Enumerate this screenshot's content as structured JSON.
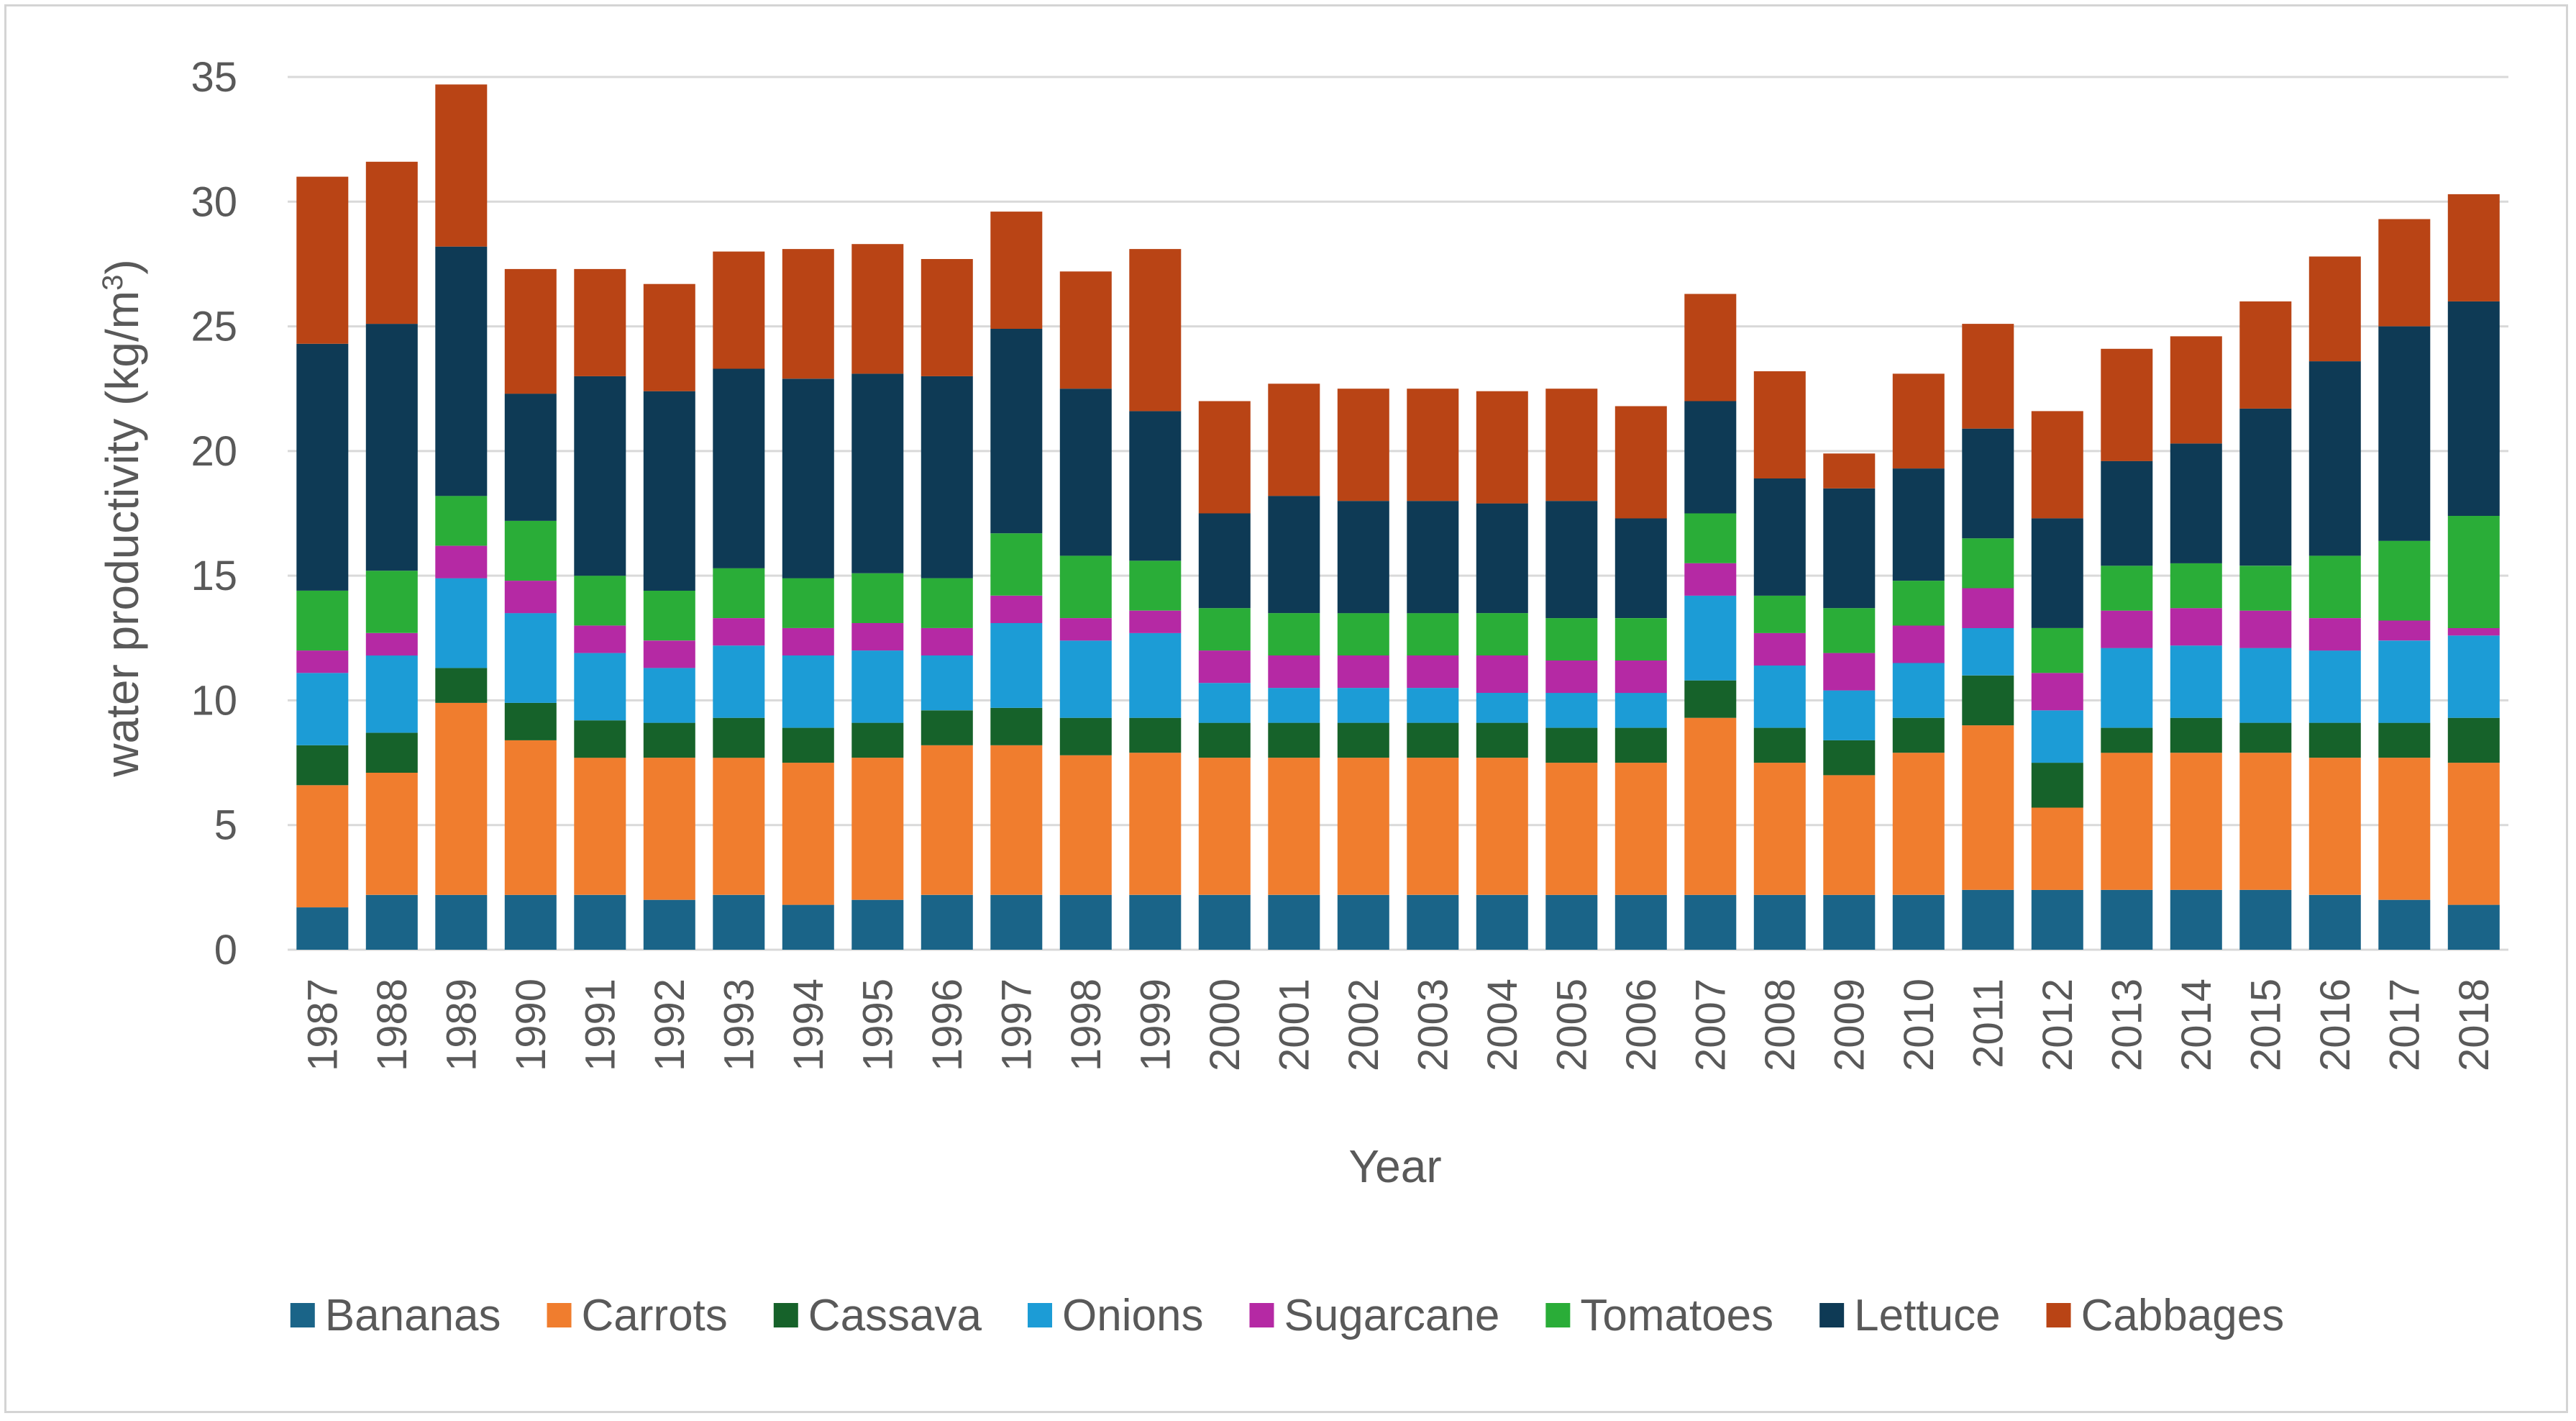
{
  "chart_data": {
    "type": "bar",
    "stacked": true,
    "title": "",
    "xlabel": "Year",
    "ylabel": "water productivity  (kg/m",
    "ylabel_superscript": "3",
    "ylabel_close": ")",
    "ylim": [
      0,
      35
    ],
    "yticks": [
      "0",
      "5",
      "10",
      "15",
      "20",
      "25",
      "30",
      "35"
    ],
    "grid": true,
    "legend_position": "bottom",
    "categories": [
      "1987",
      "1988",
      "1989",
      "1990",
      "1991",
      "1992",
      "1993",
      "1994",
      "1995",
      "1996",
      "1997",
      "1998",
      "1999",
      "2000",
      "2001",
      "2002",
      "2003",
      "2004",
      "2005",
      "2006",
      "2007",
      "2008",
      "2009",
      "2010",
      "2011",
      "2012",
      "2013",
      "2014",
      "2015",
      "2016",
      "2017",
      "2018"
    ],
    "series": [
      {
        "name": "Bananas",
        "color": "#1a6488",
        "values": [
          1.7,
          2.2,
          2.2,
          2.2,
          2.2,
          2.0,
          2.2,
          1.8,
          2.0,
          2.2,
          2.2,
          2.2,
          2.2,
          2.2,
          2.2,
          2.2,
          2.2,
          2.2,
          2.2,
          2.2,
          2.2,
          2.2,
          2.2,
          2.2,
          2.4,
          2.4,
          2.4,
          2.4,
          2.4,
          2.2,
          2.0,
          1.8
        ]
      },
      {
        "name": "Carrots",
        "color": "#f07d2e",
        "values": [
          4.9,
          4.9,
          7.7,
          6.2,
          5.5,
          5.7,
          5.5,
          5.7,
          5.7,
          6.0,
          6.0,
          5.6,
          5.7,
          5.5,
          5.5,
          5.5,
          5.5,
          5.5,
          5.3,
          5.3,
          7.1,
          5.3,
          4.8,
          5.7,
          6.6,
          3.3,
          5.5,
          5.5,
          5.5,
          5.5,
          5.7,
          5.7
        ]
      },
      {
        "name": "Cassava",
        "color": "#16622a",
        "values": [
          1.6,
          1.6,
          1.4,
          1.5,
          1.5,
          1.4,
          1.6,
          1.4,
          1.4,
          1.4,
          1.5,
          1.5,
          1.4,
          1.4,
          1.4,
          1.4,
          1.4,
          1.4,
          1.4,
          1.4,
          1.5,
          1.4,
          1.4,
          1.4,
          2.0,
          1.8,
          1.0,
          1.4,
          1.2,
          1.4,
          1.4,
          1.8
        ]
      },
      {
        "name": "Onions",
        "color": "#1c9cd6",
        "values": [
          2.9,
          3.1,
          3.6,
          3.6,
          2.7,
          2.2,
          2.9,
          2.9,
          2.9,
          2.2,
          3.4,
          3.1,
          3.4,
          1.6,
          1.4,
          1.4,
          1.4,
          1.2,
          1.4,
          1.4,
          3.4,
          2.5,
          2.0,
          2.2,
          1.9,
          2.1,
          3.2,
          2.9,
          3.0,
          2.9,
          3.3,
          3.3
        ]
      },
      {
        "name": "Sugarcane",
        "color": "#b529a4",
        "values": [
          0.9,
          0.9,
          1.3,
          1.3,
          1.1,
          1.1,
          1.1,
          1.1,
          1.1,
          1.1,
          1.1,
          0.9,
          0.9,
          1.3,
          1.3,
          1.3,
          1.3,
          1.5,
          1.3,
          1.3,
          1.3,
          1.3,
          1.5,
          1.5,
          1.6,
          1.5,
          1.5,
          1.5,
          1.5,
          1.3,
          0.8,
          0.3
        ]
      },
      {
        "name": "Tomatoes",
        "color": "#2aad38",
        "values": [
          2.4,
          2.5,
          2.0,
          2.4,
          2.0,
          2.0,
          2.0,
          2.0,
          2.0,
          2.0,
          2.5,
          2.5,
          2.0,
          1.7,
          1.7,
          1.7,
          1.7,
          1.7,
          1.7,
          1.7,
          2.0,
          1.5,
          1.8,
          1.8,
          2.0,
          1.8,
          1.8,
          1.8,
          1.8,
          2.5,
          3.2,
          4.5
        ]
      },
      {
        "name": "Lettuce",
        "color": "#0e3a55",
        "values": [
          9.9,
          9.9,
          10.0,
          5.1,
          8.0,
          8.0,
          8.0,
          8.0,
          8.0,
          8.1,
          8.2,
          6.7,
          6.0,
          3.8,
          4.7,
          4.5,
          4.5,
          4.4,
          4.7,
          4.0,
          4.5,
          4.7,
          4.8,
          4.5,
          4.4,
          4.4,
          4.2,
          4.8,
          6.3,
          7.8,
          8.6,
          8.6
        ]
      },
      {
        "name": "Cabbages",
        "color": "#b94415",
        "values": [
          6.7,
          6.5,
          6.5,
          5.0,
          4.3,
          4.3,
          4.7,
          5.2,
          5.2,
          4.7,
          4.7,
          4.7,
          6.5,
          4.5,
          4.5,
          4.5,
          4.5,
          4.5,
          4.5,
          4.5,
          4.3,
          4.3,
          1.4,
          3.8,
          4.2,
          4.3,
          4.5,
          4.3,
          4.3,
          4.2,
          4.3,
          4.3
        ]
      }
    ]
  }
}
